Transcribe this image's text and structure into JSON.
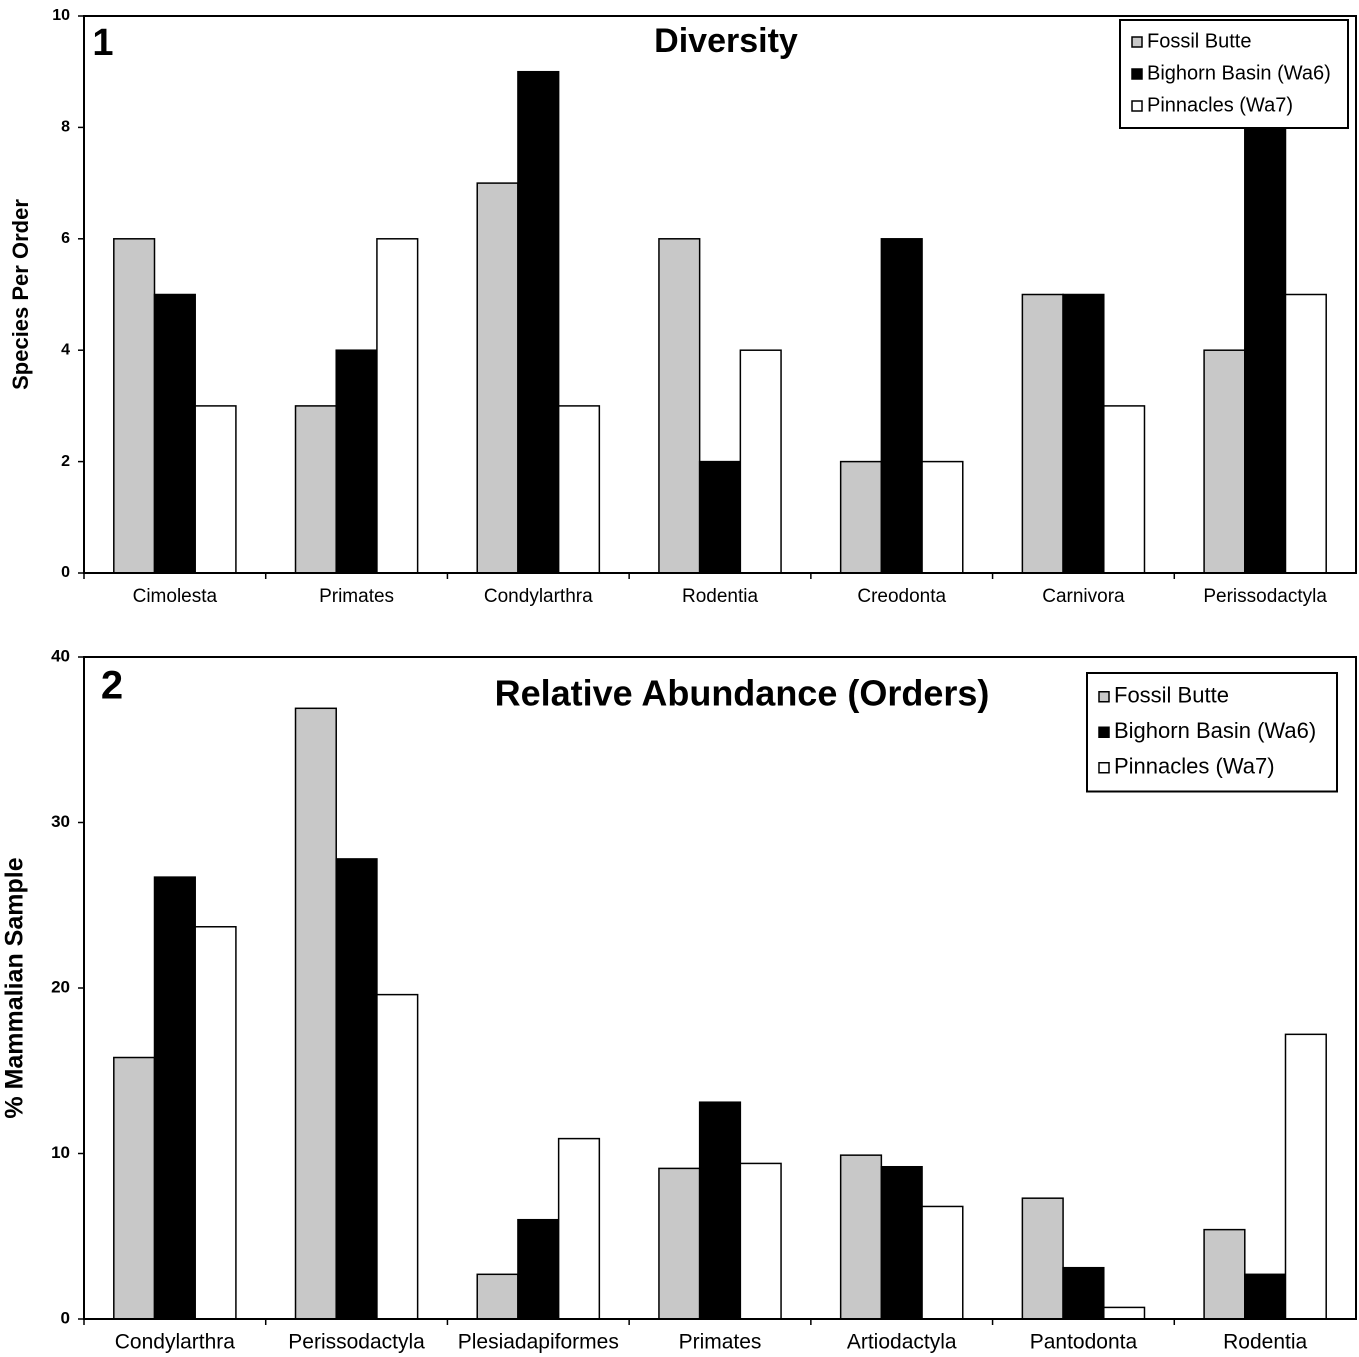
{
  "chart_data": [
    {
      "type": "bar",
      "panel_label": "1",
      "title": "Diversity",
      "y_label": "Species Per Order",
      "categories": [
        "Cimolesta",
        "Primates",
        "Condylarthra",
        "Rodentia",
        "Creodonta",
        "Carnivora",
        "Perissodactyla"
      ],
      "series": [
        {
          "name": "Fossil Butte",
          "color": "#c8c8c8",
          "values": [
            6,
            3,
            7,
            6,
            2,
            5,
            4
          ]
        },
        {
          "name": "Bighorn Basin (Wa6)",
          "color": "#000000",
          "values": [
            5,
            4,
            9,
            2,
            6,
            5,
            8
          ]
        },
        {
          "name": "Pinnacles (Wa7)",
          "color": "#ffffff",
          "values": [
            3,
            6,
            3,
            4,
            2,
            3,
            5
          ]
        }
      ],
      "ylim": [
        0,
        10
      ],
      "yticks": [
        0,
        2,
        4,
        6,
        8,
        10
      ],
      "grid": false,
      "legend": "upper right"
    },
    {
      "type": "bar",
      "panel_label": "2",
      "title": "Relative Abundance (Orders)",
      "y_label": "% Mammalian Sample",
      "categories": [
        "Condylarthra",
        "Perissodactyla",
        "Plesiadapiformes",
        "Primates",
        "Artiodactyla",
        "Pantodonta",
        "Rodentia"
      ],
      "series": [
        {
          "name": "Fossil Butte",
          "color": "#c8c8c8",
          "values": [
            15.8,
            36.9,
            2.7,
            9.1,
            9.9,
            7.3,
            5.4
          ]
        },
        {
          "name": "Bighorn Basin (Wa6)",
          "color": "#000000",
          "values": [
            26.7,
            27.8,
            6.0,
            13.1,
            9.2,
            3.1,
            2.7
          ]
        },
        {
          "name": "Pinnacles (Wa7)",
          "color": "#ffffff",
          "values": [
            23.7,
            19.6,
            10.9,
            9.4,
            6.8,
            0.7,
            17.2
          ]
        }
      ],
      "ylim": [
        0,
        40
      ],
      "yticks": [
        0,
        10,
        20,
        30,
        40
      ],
      "grid": false,
      "legend": "upper right"
    }
  ]
}
